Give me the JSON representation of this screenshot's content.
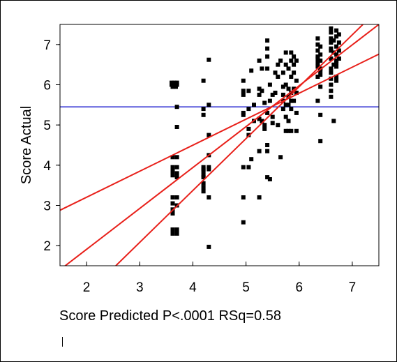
{
  "chart_data": {
    "type": "scatter",
    "title": "",
    "xlabel": "Score Predicted P<.0001 RSq=0.58",
    "ylabel": "Score Actual",
    "xlim": [
      1.5,
      7.5
    ],
    "ylim": [
      1.5,
      7.5
    ],
    "xticks": [
      2,
      3,
      4,
      5,
      6,
      7
    ],
    "yticks": [
      2,
      3,
      4,
      5,
      6,
      7
    ],
    "grid": false,
    "colors": {
      "points": "#000000",
      "fit_lines": "#e8201a",
      "mean_line": "#2323d0"
    },
    "mean_line": {
      "y": 5.45
    },
    "fit_lines": [
      {
        "name": "fit",
        "x": [
          1.5,
          7.5
        ],
        "y": [
          1.4,
          7.5
        ]
      },
      {
        "name": "upper-confidence",
        "x": [
          1.5,
          7.5
        ],
        "y": [
          2.88,
          6.76
        ]
      },
      {
        "name": "lower-confidence",
        "x": [
          2.55,
          7.2
        ],
        "y": [
          1.5,
          7.5
        ]
      }
    ],
    "points": [
      [
        3.6,
        6.05
      ],
      [
        3.65,
        6.05
      ],
      [
        3.7,
        6.05
      ],
      [
        3.6,
        6.0
      ],
      [
        3.65,
        6.0
      ],
      [
        3.7,
        6.0
      ],
      [
        3.62,
        5.95
      ],
      [
        3.68,
        5.95
      ],
      [
        3.7,
        5.45
      ],
      [
        3.7,
        4.95
      ],
      [
        3.62,
        4.2
      ],
      [
        3.7,
        4.2
      ],
      [
        3.62,
        3.95
      ],
      [
        3.7,
        3.95
      ],
      [
        3.62,
        3.85
      ],
      [
        3.7,
        3.8
      ],
      [
        3.62,
        3.75
      ],
      [
        3.7,
        3.7
      ],
      [
        3.62,
        3.2
      ],
      [
        3.7,
        3.2
      ],
      [
        3.62,
        3.05
      ],
      [
        3.7,
        3.0
      ],
      [
        3.62,
        2.9
      ],
      [
        3.62,
        2.8
      ],
      [
        3.62,
        2.4
      ],
      [
        3.7,
        2.4
      ],
      [
        3.62,
        2.3
      ],
      [
        3.7,
        2.3
      ],
      [
        4.2,
        6.1
      ],
      [
        4.2,
        5.4
      ],
      [
        4.2,
        5.25
      ],
      [
        4.2,
        3.95
      ],
      [
        4.2,
        3.9
      ],
      [
        4.2,
        3.85
      ],
      [
        4.2,
        3.75
      ],
      [
        4.2,
        3.7
      ],
      [
        4.2,
        3.55
      ],
      [
        4.2,
        3.45
      ],
      [
        4.2,
        3.35
      ],
      [
        4.3,
        6.62
      ],
      [
        4.3,
        5.5
      ],
      [
        4.3,
        4.75
      ],
      [
        4.3,
        4.25
      ],
      [
        4.3,
        3.95
      ],
      [
        4.3,
        3.9
      ],
      [
        4.3,
        3.2
      ],
      [
        4.3,
        1.97
      ],
      [
        4.95,
        6.1
      ],
      [
        4.95,
        5.85
      ],
      [
        4.95,
        5.75
      ],
      [
        4.95,
        5.3
      ],
      [
        4.95,
        5.25
      ],
      [
        4.95,
        3.95
      ],
      [
        4.95,
        3.2
      ],
      [
        4.95,
        2.58
      ],
      [
        5.05,
        5.85
      ],
      [
        5.05,
        5.4
      ],
      [
        5.05,
        4.9
      ],
      [
        5.05,
        4.75
      ],
      [
        5.05,
        3.95
      ],
      [
        5.1,
        6.35
      ],
      [
        5.1,
        4.15
      ],
      [
        5.15,
        5.5
      ],
      [
        5.15,
        5.1
      ],
      [
        5.25,
        6.6
      ],
      [
        5.25,
        5.9
      ],
      [
        5.25,
        5.75
      ],
      [
        5.25,
        5.15
      ],
      [
        5.25,
        4.35
      ],
      [
        5.25,
        3.2
      ],
      [
        5.3,
        6.4
      ],
      [
        5.3,
        5.85
      ],
      [
        5.3,
        5.1
      ],
      [
        5.35,
        5.55
      ],
      [
        5.35,
        5.0
      ],
      [
        5.35,
        4.9
      ],
      [
        5.4,
        7.1
      ],
      [
        5.4,
        6.9
      ],
      [
        5.4,
        6.7
      ],
      [
        5.4,
        6.4
      ],
      [
        5.4,
        5.3
      ],
      [
        5.4,
        4.5
      ],
      [
        5.4,
        4.35
      ],
      [
        5.4,
        3.7
      ],
      [
        5.45,
        6.0
      ],
      [
        5.45,
        5.6
      ],
      [
        5.45,
        3.65
      ],
      [
        5.5,
        5.75
      ],
      [
        5.5,
        5.2
      ],
      [
        5.5,
        5.05
      ],
      [
        5.55,
        6.3
      ],
      [
        5.55,
        5.8
      ],
      [
        5.6,
        6.5
      ],
      [
        5.6,
        6.2
      ],
      [
        5.6,
        5.0
      ],
      [
        5.65,
        6.6
      ],
      [
        5.65,
        4.2
      ],
      [
        5.7,
        6.3
      ],
      [
        5.7,
        5.95
      ],
      [
        5.7,
        5.75
      ],
      [
        5.7,
        5.6
      ],
      [
        5.7,
        5.4
      ],
      [
        5.75,
        6.8
      ],
      [
        5.75,
        6.5
      ],
      [
        5.75,
        6.0
      ],
      [
        5.75,
        5.5
      ],
      [
        5.75,
        5.2
      ],
      [
        5.75,
        4.85
      ],
      [
        5.8,
        6.4
      ],
      [
        5.8,
        5.9
      ],
      [
        5.8,
        5.7
      ],
      [
        5.8,
        5.5
      ],
      [
        5.8,
        5.1
      ],
      [
        5.8,
        4.85
      ],
      [
        5.85,
        6.8
      ],
      [
        5.85,
        6.6
      ],
      [
        5.85,
        6.2
      ],
      [
        5.85,
        5.8
      ],
      [
        5.85,
        5.6
      ],
      [
        5.85,
        5.4
      ],
      [
        5.85,
        4.85
      ],
      [
        5.9,
        6.7
      ],
      [
        5.9,
        6.5
      ],
      [
        5.9,
        6.3
      ],
      [
        5.9,
        5.9
      ],
      [
        5.9,
        5.6
      ],
      [
        5.95,
        6.6
      ],
      [
        5.95,
        6.1
      ],
      [
        5.95,
        5.8
      ],
      [
        5.95,
        5.3
      ],
      [
        5.95,
        4.85
      ],
      [
        6.35,
        7.15
      ],
      [
        6.35,
        7.0
      ],
      [
        6.35,
        6.85
      ],
      [
        6.35,
        6.7
      ],
      [
        6.35,
        6.65
      ],
      [
        6.35,
        6.55
      ],
      [
        6.35,
        6.45
      ],
      [
        6.35,
        6.2
      ],
      [
        6.35,
        5.6
      ],
      [
        6.4,
        6.95
      ],
      [
        6.4,
        6.75
      ],
      [
        6.4,
        6.6
      ],
      [
        6.4,
        6.4
      ],
      [
        6.4,
        6.35
      ],
      [
        6.4,
        6.25
      ],
      [
        6.4,
        5.95
      ],
      [
        6.4,
        5.25
      ],
      [
        6.4,
        4.6
      ],
      [
        6.6,
        7.4
      ],
      [
        6.6,
        7.3
      ],
      [
        6.6,
        7.15
      ],
      [
        6.6,
        7.05
      ],
      [
        6.6,
        6.9
      ],
      [
        6.6,
        6.85
      ],
      [
        6.6,
        6.65
      ],
      [
        6.6,
        6.4
      ],
      [
        6.6,
        6.3
      ],
      [
        6.6,
        6.15
      ],
      [
        6.6,
        6.0
      ],
      [
        6.6,
        5.85
      ],
      [
        6.6,
        5.7
      ],
      [
        6.65,
        7.1
      ],
      [
        6.65,
        6.8
      ],
      [
        6.65,
        6.5
      ],
      [
        6.65,
        5.1
      ],
      [
        6.7,
        7.35
      ],
      [
        6.7,
        7.2
      ],
      [
        6.7,
        6.95
      ],
      [
        6.7,
        6.75
      ],
      [
        6.7,
        6.6
      ],
      [
        6.7,
        6.55
      ],
      [
        6.7,
        6.45
      ],
      [
        6.7,
        6.2
      ],
      [
        6.7,
        6.1
      ],
      [
        6.75,
        7.25
      ],
      [
        6.75,
        7.05
      ],
      [
        6.75,
        6.85
      ],
      [
        6.75,
        6.65
      ]
    ]
  }
}
